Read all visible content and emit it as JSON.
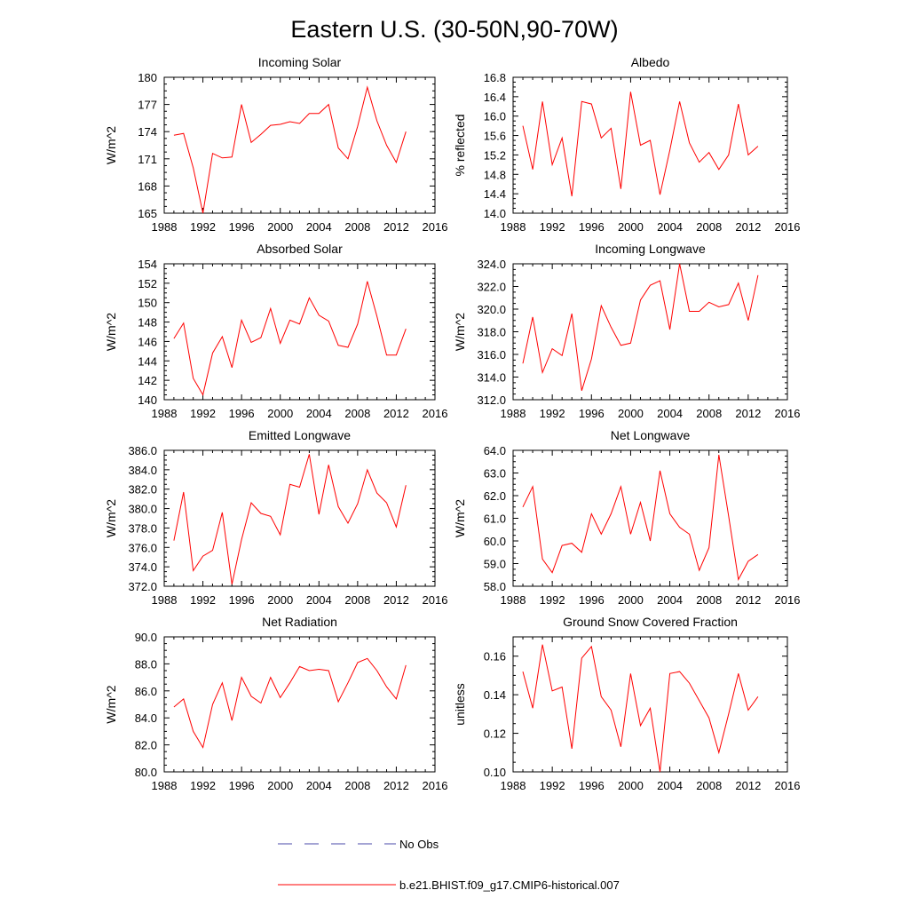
{
  "figure": {
    "title": "Eastern U.S. (30-50N,90-70W)",
    "legend": [
      {
        "label": "No Obs",
        "color": "#4a4aa8",
        "style": "dashed"
      },
      {
        "label": "b.e21.BHIST.f09_g17.CMIP6-historical.007",
        "color": "#ff0000",
        "style": "solid"
      }
    ]
  },
  "chart_data": [
    {
      "type": "line",
      "title": "Incoming Solar",
      "ylabel": "W/m^2",
      "xlim": [
        1988,
        2016
      ],
      "ylim": [
        165,
        180
      ],
      "xticks": [
        "1988",
        "1992",
        "1996",
        "2000",
        "2004",
        "2008",
        "2012",
        "2016"
      ],
      "yticks": [
        "165",
        "168",
        "171",
        "174",
        "177",
        "180"
      ],
      "series": [
        {
          "color": "#ff0000",
          "x": [
            1989,
            1990,
            1991,
            1992,
            1993,
            1994,
            1995,
            1996,
            1997,
            1998,
            1999,
            2000,
            2001,
            2002,
            2003,
            2004,
            2005,
            2006,
            2007,
            2008,
            2009,
            2010,
            2011,
            2012,
            2013
          ],
          "y": [
            173.6,
            173.8,
            170.0,
            165.0,
            171.6,
            171.1,
            171.2,
            177.0,
            172.8,
            173.7,
            174.7,
            174.8,
            175.1,
            174.9,
            176.0,
            176.0,
            177.0,
            172.2,
            171.0,
            174.6,
            178.9,
            175.2,
            172.5,
            170.6,
            174.0
          ]
        }
      ]
    },
    {
      "type": "line",
      "title": "Albedo",
      "ylabel": "% reflected",
      "xlim": [
        1988,
        2016
      ],
      "ylim": [
        14.0,
        16.8
      ],
      "xticks": [
        "1988",
        "1992",
        "1996",
        "2000",
        "2004",
        "2008",
        "2012",
        "2016"
      ],
      "yticks": [
        "14.0",
        "14.4",
        "14.8",
        "15.2",
        "15.6",
        "16.0",
        "16.4",
        "16.8"
      ],
      "series": [
        {
          "color": "#ff0000",
          "x": [
            1989,
            1990,
            1991,
            1992,
            1993,
            1994,
            1995,
            1996,
            1997,
            1998,
            1999,
            2000,
            2001,
            2002,
            2003,
            2004,
            2005,
            2006,
            2007,
            2008,
            2009,
            2010,
            2011,
            2012,
            2013
          ],
          "y": [
            15.8,
            14.9,
            16.3,
            15.0,
            15.55,
            14.35,
            16.3,
            16.25,
            15.55,
            15.75,
            14.5,
            16.5,
            15.4,
            15.5,
            14.38,
            15.3,
            16.3,
            15.45,
            15.05,
            15.25,
            14.9,
            15.2,
            16.25,
            15.2,
            15.38
          ]
        }
      ]
    },
    {
      "type": "line",
      "title": "Absorbed Solar",
      "ylabel": "W/m^2",
      "xlim": [
        1988,
        2016
      ],
      "ylim": [
        140,
        154
      ],
      "xticks": [
        "1988",
        "1992",
        "1996",
        "2000",
        "2004",
        "2008",
        "2012",
        "2016"
      ],
      "yticks": [
        "140",
        "142",
        "144",
        "146",
        "148",
        "150",
        "152",
        "154"
      ],
      "series": [
        {
          "color": "#ff0000",
          "x": [
            1989,
            1990,
            1991,
            1992,
            1993,
            1994,
            1995,
            1996,
            1997,
            1998,
            1999,
            2000,
            2001,
            2002,
            2003,
            2004,
            2005,
            2006,
            2007,
            2008,
            2009,
            2010,
            2011,
            2012,
            2013
          ],
          "y": [
            146.3,
            147.9,
            142.2,
            140.5,
            144.8,
            146.5,
            143.3,
            148.2,
            145.9,
            146.4,
            149.4,
            145.8,
            148.2,
            147.8,
            150.5,
            148.7,
            148.1,
            145.6,
            145.4,
            147.8,
            152.2,
            148.6,
            144.6,
            144.6,
            147.3
          ]
        }
      ]
    },
    {
      "type": "line",
      "title": "Incoming Longwave",
      "ylabel": "W/m^2",
      "xlim": [
        1988,
        2016
      ],
      "ylim": [
        312.0,
        324.0
      ],
      "xticks": [
        "1988",
        "1992",
        "1996",
        "2000",
        "2004",
        "2008",
        "2012",
        "2016"
      ],
      "yticks": [
        "312.0",
        "314.0",
        "316.0",
        "318.0",
        "320.0",
        "322.0",
        "324.0"
      ],
      "series": [
        {
          "color": "#ff0000",
          "x": [
            1989,
            1990,
            1991,
            1992,
            1993,
            1994,
            1995,
            1996,
            1997,
            1998,
            1999,
            2000,
            2001,
            2002,
            2003,
            2004,
            2005,
            2006,
            2007,
            2008,
            2009,
            2010,
            2011,
            2012,
            2013
          ],
          "y": [
            315.2,
            319.3,
            314.4,
            316.5,
            315.9,
            319.6,
            312.8,
            315.6,
            320.3,
            318.4,
            316.8,
            317.0,
            320.8,
            322.1,
            322.5,
            318.2,
            324.0,
            319.8,
            319.8,
            320.6,
            320.2,
            320.4,
            322.3,
            319.0,
            323.0
          ]
        }
      ]
    },
    {
      "type": "line",
      "title": "Emitted Longwave",
      "ylabel": "W/m^2",
      "xlim": [
        1988,
        2016
      ],
      "ylim": [
        372.0,
        386.0
      ],
      "xticks": [
        "1988",
        "1992",
        "1996",
        "2000",
        "2004",
        "2008",
        "2012",
        "2016"
      ],
      "yticks": [
        "372.0",
        "374.0",
        "376.0",
        "378.0",
        "380.0",
        "382.0",
        "384.0",
        "386.0"
      ],
      "series": [
        {
          "color": "#ff0000",
          "x": [
            1989,
            1990,
            1991,
            1992,
            1993,
            1994,
            1995,
            1996,
            1997,
            1998,
            1999,
            2000,
            2001,
            2002,
            2003,
            2004,
            2005,
            2006,
            2007,
            2008,
            2009,
            2010,
            2011,
            2012,
            2013
          ],
          "y": [
            376.7,
            381.7,
            373.6,
            375.1,
            375.7,
            379.6,
            372.2,
            376.8,
            380.6,
            379.5,
            379.2,
            377.3,
            382.5,
            382.2,
            385.6,
            379.4,
            384.5,
            380.2,
            378.5,
            380.5,
            384.0,
            381.6,
            380.6,
            378.1,
            382.4
          ]
        }
      ]
    },
    {
      "type": "line",
      "title": "Net Longwave",
      "ylabel": "W/m^2",
      "xlim": [
        1988,
        2016
      ],
      "ylim": [
        58.0,
        64.0
      ],
      "xticks": [
        "1988",
        "1992",
        "1996",
        "2000",
        "2004",
        "2008",
        "2012",
        "2016"
      ],
      "yticks": [
        "58.0",
        "59.0",
        "60.0",
        "61.0",
        "62.0",
        "63.0",
        "64.0"
      ],
      "series": [
        {
          "color": "#ff0000",
          "x": [
            1989,
            1990,
            1991,
            1992,
            1993,
            1994,
            1995,
            1996,
            1997,
            1998,
            1999,
            2000,
            2001,
            2002,
            2003,
            2004,
            2005,
            2006,
            2007,
            2008,
            2009,
            2010,
            2011,
            2012,
            2013
          ],
          "y": [
            61.5,
            62.4,
            59.2,
            58.6,
            59.8,
            59.9,
            59.5,
            61.2,
            60.3,
            61.2,
            62.4,
            60.3,
            61.7,
            60.0,
            63.1,
            61.2,
            60.6,
            60.3,
            58.7,
            59.7,
            63.8,
            61.1,
            58.3,
            59.1,
            59.4
          ]
        }
      ]
    },
    {
      "type": "line",
      "title": "Net Radiation",
      "ylabel": "W/m^2",
      "xlim": [
        1988,
        2016
      ],
      "ylim": [
        80.0,
        90.0
      ],
      "xticks": [
        "1988",
        "1992",
        "1996",
        "2000",
        "2004",
        "2008",
        "2012",
        "2016"
      ],
      "yticks": [
        "80.0",
        "82.0",
        "84.0",
        "86.0",
        "88.0",
        "90.0"
      ],
      "series": [
        {
          "color": "#ff0000",
          "x": [
            1989,
            1990,
            1991,
            1992,
            1993,
            1994,
            1995,
            1996,
            1997,
            1998,
            1999,
            2000,
            2001,
            2002,
            2003,
            2004,
            2005,
            2006,
            2007,
            2008,
            2009,
            2010,
            2011,
            2012,
            2013
          ],
          "y": [
            84.8,
            85.4,
            83.0,
            81.8,
            85.0,
            86.6,
            83.8,
            87.0,
            85.6,
            85.1,
            87.0,
            85.5,
            86.6,
            87.8,
            87.5,
            87.6,
            87.5,
            85.2,
            86.6,
            88.1,
            88.4,
            87.5,
            86.3,
            85.4,
            87.9
          ]
        }
      ]
    },
    {
      "type": "line",
      "title": "Ground Snow Covered Fraction",
      "ylabel": "unitless",
      "xlim": [
        1988,
        2016
      ],
      "ylim": [
        0.1,
        0.17
      ],
      "xticks": [
        "1988",
        "1992",
        "1996",
        "2000",
        "2004",
        "2008",
        "2012",
        "2016"
      ],
      "yticks": [
        "0.10",
        "0.12",
        "0.14",
        "0.16"
      ],
      "series": [
        {
          "color": "#ff0000",
          "x": [
            1989,
            1990,
            1991,
            1992,
            1993,
            1994,
            1995,
            1996,
            1997,
            1998,
            1999,
            2000,
            2001,
            2002,
            2003,
            2004,
            2005,
            2006,
            2007,
            2008,
            2009,
            2010,
            2011,
            2012,
            2013
          ],
          "y": [
            0.152,
            0.133,
            0.166,
            0.142,
            0.144,
            0.112,
            0.159,
            0.165,
            0.139,
            0.132,
            0.113,
            0.151,
            0.124,
            0.133,
            0.1,
            0.151,
            0.152,
            0.146,
            0.137,
            0.128,
            0.11,
            0.13,
            0.151,
            0.132,
            0.139
          ]
        }
      ]
    }
  ]
}
